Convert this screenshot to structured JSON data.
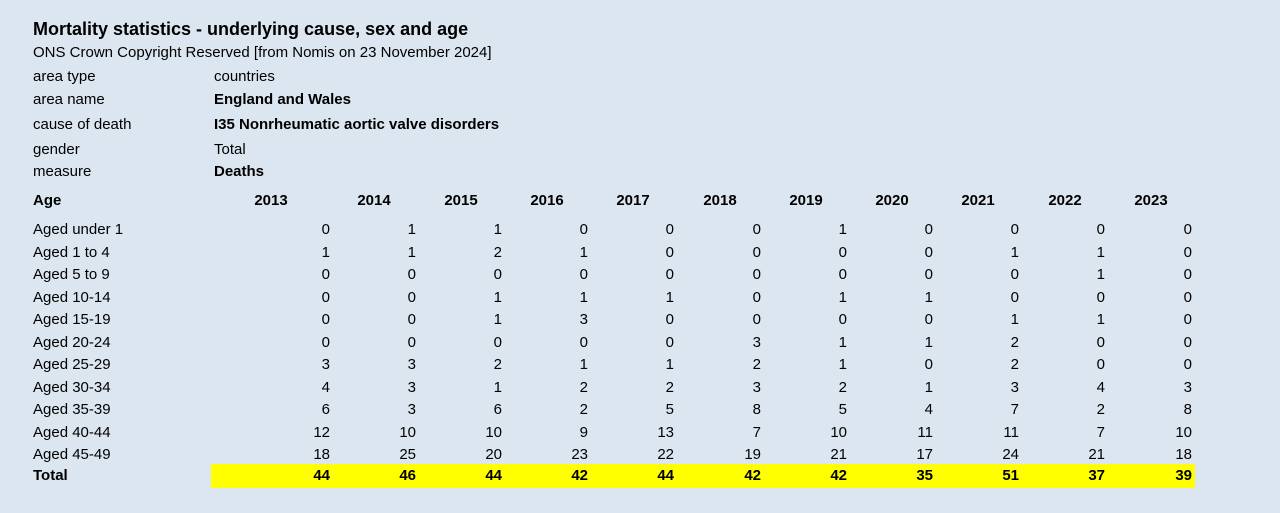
{
  "title": "Mortality statistics - underlying cause, sex and age",
  "source": "ONS Crown Copyright Reserved [from Nomis on 23 November 2024]",
  "meta": [
    {
      "label": "area type",
      "value": "countries",
      "bold": false
    },
    {
      "label": "area name",
      "value": "England and Wales",
      "bold": true
    },
    {
      "label": "cause of death",
      "value": "I35 Nonrheumatic aortic valve disorders",
      "bold": true
    },
    {
      "label": "gender",
      "value": "Total",
      "bold": false
    },
    {
      "label": "measure",
      "value": "Deaths",
      "bold": true
    }
  ],
  "table": {
    "age_header": "Age",
    "years": [
      "2013",
      "2014",
      "2015",
      "2016",
      "2017",
      "2018",
      "2019",
      "2020",
      "2021",
      "2022",
      "2023"
    ],
    "rows": [
      {
        "label": "Aged under 1",
        "values": [
          0,
          1,
          1,
          0,
          0,
          0,
          1,
          0,
          0,
          0,
          0
        ]
      },
      {
        "label": "Aged 1 to 4",
        "values": [
          1,
          1,
          2,
          1,
          0,
          0,
          0,
          0,
          1,
          1,
          0
        ]
      },
      {
        "label": "Aged 5 to 9",
        "values": [
          0,
          0,
          0,
          0,
          0,
          0,
          0,
          0,
          0,
          1,
          0
        ]
      },
      {
        "label": "Aged 10-14",
        "values": [
          0,
          0,
          1,
          1,
          1,
          0,
          1,
          1,
          0,
          0,
          0
        ]
      },
      {
        "label": "Aged 15-19",
        "values": [
          0,
          0,
          1,
          3,
          0,
          0,
          0,
          0,
          1,
          1,
          0
        ]
      },
      {
        "label": "Aged 20-24",
        "values": [
          0,
          0,
          0,
          0,
          0,
          3,
          1,
          1,
          2,
          0,
          0
        ]
      },
      {
        "label": "Aged 25-29",
        "values": [
          3,
          3,
          2,
          1,
          1,
          2,
          1,
          0,
          2,
          0,
          0
        ]
      },
      {
        "label": "Aged 30-34",
        "values": [
          4,
          3,
          1,
          2,
          2,
          3,
          2,
          1,
          3,
          4,
          3
        ]
      },
      {
        "label": "Aged 35-39",
        "values": [
          6,
          3,
          6,
          2,
          5,
          8,
          5,
          4,
          7,
          2,
          8
        ]
      },
      {
        "label": "Aged 40-44",
        "values": [
          12,
          10,
          10,
          9,
          13,
          7,
          10,
          11,
          11,
          7,
          10
        ]
      },
      {
        "label": "Aged 45-49",
        "values": [
          18,
          25,
          20,
          23,
          22,
          19,
          21,
          17,
          24,
          21,
          18
        ]
      }
    ],
    "total": {
      "label": "Total",
      "values": [
        44,
        46,
        44,
        42,
        44,
        42,
        42,
        35,
        51,
        37,
        39
      ]
    },
    "total_highlight_color": "#ffff00"
  }
}
